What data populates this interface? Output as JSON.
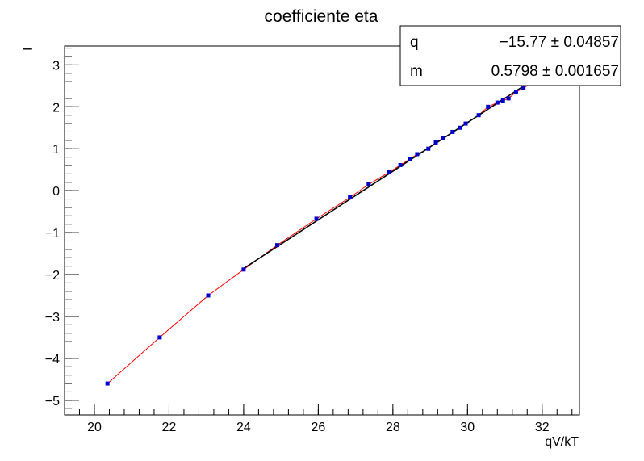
{
  "chart_data": {
    "type": "scatter",
    "title": "coefficiente eta",
    "xlabel": "qV/kT",
    "ylabel": "",
    "xlim": [
      19.2,
      33.0
    ],
    "ylim": [
      -5.35,
      3.45
    ],
    "x_major_ticks": [
      20,
      22,
      24,
      26,
      28,
      30,
      32
    ],
    "x_tick_labels": [
      "20",
      "22",
      "24",
      "26",
      "28",
      "30",
      "32"
    ],
    "x_minor_step": 0.4,
    "y_major_ticks": [
      -5,
      -4,
      -3,
      -2,
      -1,
      0,
      1,
      2,
      3
    ],
    "y_tick_labels": [
      "−5",
      "−4",
      "−3",
      "−2",
      "−1",
      "0",
      "1",
      "2",
      "3"
    ],
    "y_minor_step": 0.2,
    "grid": false,
    "series": [
      {
        "color": "#0000cc",
        "marker": "square",
        "x": [
          20.35,
          21.75,
          23.05,
          24.0,
          24.9,
          25.95,
          26.85,
          27.35,
          27.9,
          28.2,
          28.45,
          28.65,
          28.95,
          29.15,
          29.35,
          29.6,
          29.8,
          29.95,
          30.3,
          30.55,
          30.8,
          30.95,
          31.1,
          31.3,
          31.5,
          31.7
        ],
        "y": [
          -4.6,
          -3.5,
          -2.5,
          -1.88,
          -1.3,
          -0.67,
          -0.16,
          0.15,
          0.44,
          0.61,
          0.75,
          0.87,
          1.0,
          1.15,
          1.25,
          1.4,
          1.5,
          1.6,
          1.8,
          2.0,
          2.1,
          2.15,
          2.2,
          2.35,
          2.45,
          2.55
        ]
      }
    ],
    "interpolation_line": {
      "color": "#ff0000"
    },
    "fit": {
      "color": "#000000",
      "x_range": [
        24.0,
        31.8
      ],
      "intercept": -15.77,
      "slope": 0.5798
    },
    "stats_box": {
      "rows": [
        {
          "name": "q",
          "value": "−15.77 ± 0.04857"
        },
        {
          "name": "m",
          "value": "0.5798 ± 0.001657"
        }
      ]
    },
    "axis_dash_label": "–"
  }
}
